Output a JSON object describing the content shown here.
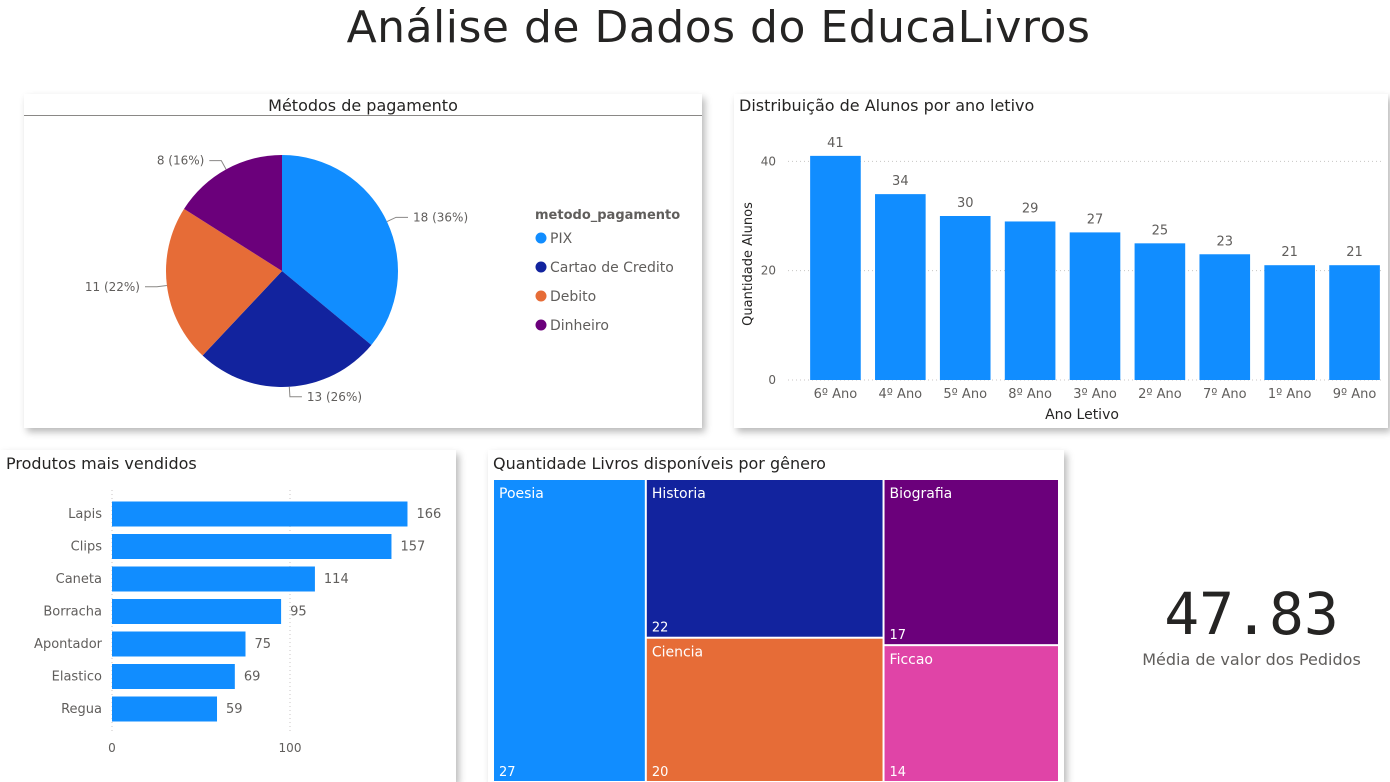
{
  "page": {
    "title": "Análise de Dados do EducaLivros"
  },
  "charts": [
    {
      "type": "pie",
      "title": "Métodos de pagamento",
      "legend_title": "metodo_pagamento",
      "legend_placement": "right",
      "slices": [
        {
          "name": "PIX",
          "value": 18,
          "label": "18 (36%)",
          "color": "#118DFF"
        },
        {
          "name": "Cartao de Credito",
          "value": 13,
          "label": "13 (26%)",
          "color": "#12239E"
        },
        {
          "name": "Debito",
          "value": 11,
          "label": "11 (22%)",
          "color": "#E66C37"
        },
        {
          "name": "Dinheiro",
          "value": 8,
          "label": "8 (16%)",
          "color": "#6B007B"
        }
      ]
    },
    {
      "type": "bar",
      "title": "Distribuição de Alunos por ano letivo",
      "xlabel": "Ano Letivo",
      "ylabel": "Quantidade Alunos",
      "ylim": [
        0,
        45
      ],
      "yticks": [
        0,
        20,
        40
      ],
      "grid": true,
      "color": "#118DFF",
      "categories": [
        "6º Ano",
        "4º Ano",
        "5º Ano",
        "8º Ano",
        "3º Ano",
        "2º Ano",
        "7º Ano",
        "1º Ano",
        "9º Ano"
      ],
      "values": [
        41,
        34,
        30,
        29,
        27,
        25,
        23,
        21,
        21
      ]
    },
    {
      "type": "bar",
      "orientation": "horizontal",
      "title": "Produtos mais vendidos",
      "xlim": [
        0,
        180
      ],
      "xticks": [
        0,
        100
      ],
      "grid": true,
      "color": "#118DFF",
      "categories": [
        "Lapis",
        "Clips",
        "Caneta",
        "Borracha",
        "Apontador",
        "Elastico",
        "Regua"
      ],
      "values": [
        166,
        157,
        114,
        95,
        75,
        69,
        59
      ]
    },
    {
      "type": "treemap",
      "title": "Quantidade Livros disponíveis por gênero",
      "items": [
        {
          "name": "Poesia",
          "value": 27,
          "color": "#118DFF"
        },
        {
          "name": "Historia",
          "value": 22,
          "color": "#12239E"
        },
        {
          "name": "Ciencia",
          "value": 20,
          "color": "#E66C37"
        },
        {
          "name": "Biografia",
          "value": 17,
          "color": "#6B007B"
        },
        {
          "name": "Ficcao",
          "value": 14,
          "color": "#E044A7"
        }
      ]
    }
  ],
  "kpi": {
    "value": "47.83",
    "label": "Média de valor dos Pedidos"
  }
}
